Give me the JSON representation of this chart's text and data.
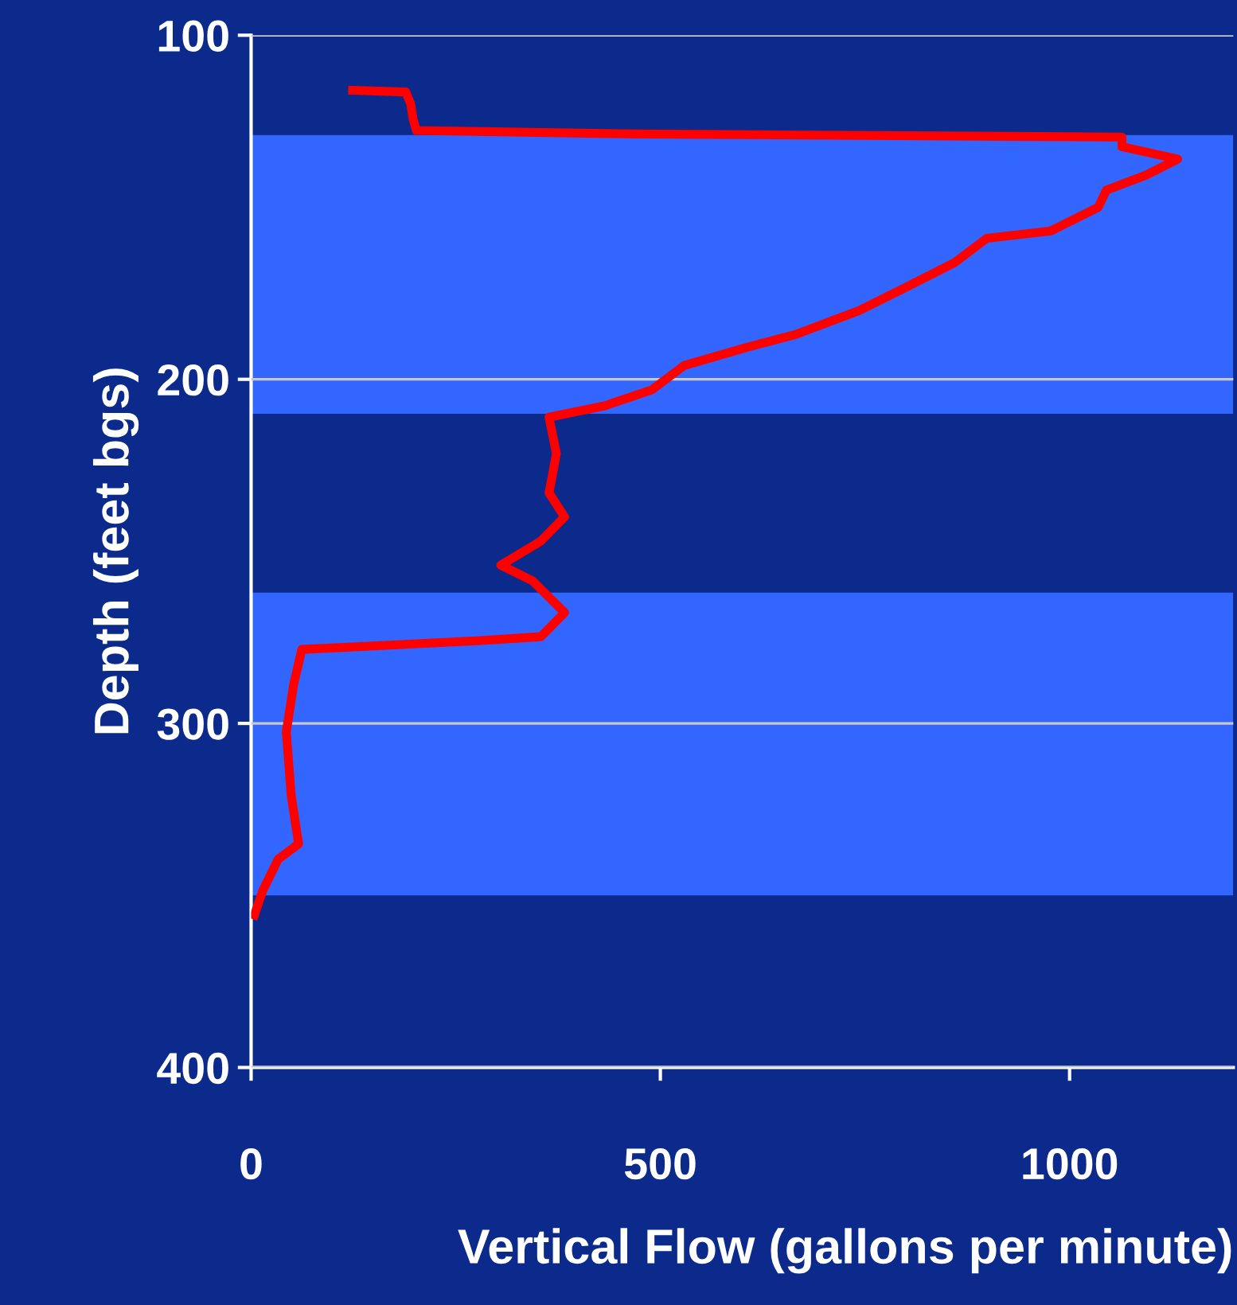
{
  "chart_data": {
    "type": "line",
    "xlabel": "Vertical Flow (gallons per minute)",
    "ylabel": "Depth (feet bgs)",
    "xlim": [
      0,
      1200
    ],
    "xticks": [
      0,
      500,
      1000
    ],
    "ylim": [
      400,
      100
    ],
    "yticks": [
      100,
      200,
      300,
      400
    ],
    "grid": "y",
    "bands": [
      {
        "axis": "y",
        "from": 129,
        "to": 210,
        "color": "#3366ff"
      },
      {
        "axis": "y",
        "from": 262,
        "to": 350,
        "color": "#3366ff"
      }
    ],
    "series": [
      {
        "color": "#ff0000",
        "line_style": "solid",
        "x": [
          124,
          189,
          195,
          198,
          202,
          471,
          1064,
          1064,
          1132,
          1093,
          1045,
          1035,
          977,
          899,
          860,
          802,
          743,
          665,
          607,
          529,
          490,
          432,
          364,
          373,
          364,
          383,
          354,
          305,
          344,
          383,
          354,
          276,
          62,
          52,
          43,
          49,
          58,
          33,
          14,
          4
        ],
        "values": [
          116,
          116.5,
          120,
          124.5,
          127.7,
          128.7,
          129.6,
          132.4,
          136,
          140.7,
          145,
          150,
          156.9,
          159,
          166,
          173,
          180,
          187,
          190.6,
          196,
          203,
          207.7,
          211,
          221.6,
          233,
          240,
          247,
          254,
          258.6,
          267.8,
          274.8,
          276,
          278.5,
          288.6,
          302.5,
          321,
          335,
          339.5,
          348.7,
          355.7
        ]
      }
    ]
  }
}
